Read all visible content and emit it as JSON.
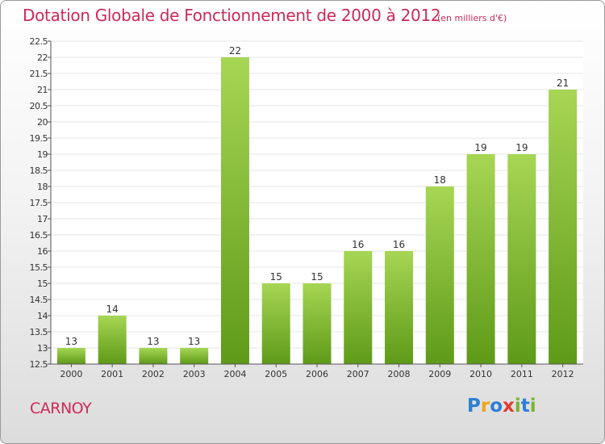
{
  "title": "Dotation Globale de Fonctionnement de 2000 à 2012",
  "unit": "(en milliers d'€)",
  "commune": "CARNOY",
  "logo": {
    "letters": [
      {
        "char": "P",
        "color": "#2c7fd6"
      },
      {
        "char": "r",
        "color": "#f0a51a"
      },
      {
        "char": "o",
        "color": "#2c7fd6"
      },
      {
        "char": "x",
        "color": "#e63a2e"
      },
      {
        "char": "i",
        "color": "#7ab52e"
      },
      {
        "char": "t",
        "color": "#2c7fd6"
      },
      {
        "char": "i",
        "color": "#7ab52e"
      }
    ]
  },
  "colors": {
    "title": "#cc2a5a",
    "bar_top": "#a6d654",
    "bar_bottom": "#5e9a18",
    "axis": "#555555",
    "grid": "#e6e6e6"
  },
  "chart_data": {
    "type": "bar",
    "title": "Dotation Globale de Fonctionnement de 2000 à 2012",
    "subtitle": "(en milliers d'€)",
    "xlabel": "",
    "ylabel": "",
    "categories": [
      "2000",
      "2001",
      "2002",
      "2003",
      "2004",
      "2005",
      "2006",
      "2007",
      "2008",
      "2009",
      "2010",
      "2011",
      "2012"
    ],
    "values": [
      13,
      14,
      13,
      13,
      22,
      15,
      15,
      16,
      16,
      18,
      19,
      19,
      21
    ],
    "value_labels": [
      "13",
      "14",
      "13",
      "13",
      "22",
      "15",
      "15",
      "16",
      "16",
      "18",
      "19",
      "19",
      "21"
    ],
    "ylim": [
      12.5,
      22.5
    ],
    "yticks": [
      12.5,
      13,
      13.5,
      14,
      14.5,
      15,
      15.5,
      16,
      16.5,
      17,
      17.5,
      18,
      18.5,
      19,
      19.5,
      20,
      20.5,
      21,
      21.5,
      22,
      22.5
    ],
    "ytick_labels": [
      "12.5",
      "13",
      "13.5",
      "14",
      "14.5",
      "15",
      "15.5",
      "16",
      "16.5",
      "17",
      "17.5",
      "18",
      "18.5",
      "19",
      "19.5",
      "20",
      "20.5",
      "21",
      "21.5",
      "22",
      "22.5"
    ],
    "grid": true,
    "legend": "none"
  }
}
